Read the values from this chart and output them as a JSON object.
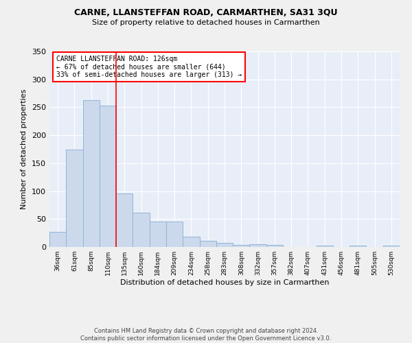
{
  "title": "CARNE, LLANSTEFFAN ROAD, CARMARTHEN, SA31 3QU",
  "subtitle": "Size of property relative to detached houses in Carmarthen",
  "xlabel": "Distribution of detached houses by size in Carmarthen",
  "ylabel": "Number of detached properties",
  "bar_color": "#ccd9ec",
  "bar_edge_color": "#8fb4d8",
  "background_color": "#e8eef8",
  "grid_color": "#ffffff",
  "fig_color": "#f0f0f0",
  "categories": [
    "36sqm",
    "61sqm",
    "85sqm",
    "110sqm",
    "135sqm",
    "160sqm",
    "184sqm",
    "209sqm",
    "234sqm",
    "258sqm",
    "283sqm",
    "308sqm",
    "332sqm",
    "357sqm",
    "382sqm",
    "407sqm",
    "431sqm",
    "456sqm",
    "481sqm",
    "505sqm",
    "530sqm"
  ],
  "values": [
    27,
    175,
    263,
    253,
    96,
    62,
    46,
    46,
    19,
    11,
    7,
    4,
    5,
    4,
    0,
    0,
    3,
    0,
    2,
    0,
    3
  ],
  "red_line_x": 4,
  "annotation_title": "CARNE LLANSTEFFAN ROAD: 126sqm",
  "annotation_line1": "← 67% of detached houses are smaller (644)",
  "annotation_line2": "33% of semi-detached houses are larger (313) →",
  "ylim": [
    0,
    350
  ],
  "yticks": [
    0,
    50,
    100,
    150,
    200,
    250,
    300,
    350
  ],
  "footer_line1": "Contains HM Land Registry data © Crown copyright and database right 2024.",
  "footer_line2": "Contains public sector information licensed under the Open Government Licence v3.0."
}
